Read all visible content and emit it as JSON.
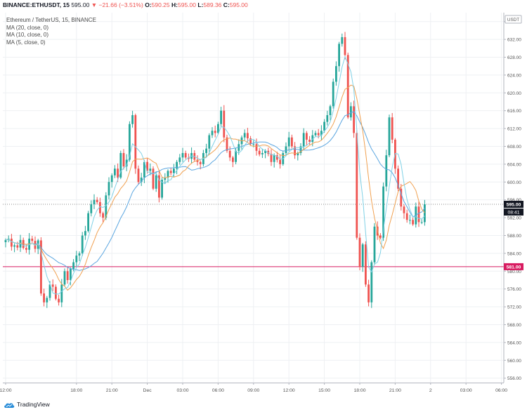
{
  "header": {
    "symbol": "BINANCE:ETHUSDT, 15",
    "last": "595.00",
    "change": "−21.66 (−3.51%)",
    "o_label": "O:",
    "o_val": "590.25",
    "h_label": "H:",
    "h_val": "595.00",
    "l_label": "L:",
    "l_val": "589.36",
    "c_label": "C:",
    "c_val": "595.00"
  },
  "legend": {
    "title": "Ethereum / TetherUS, 15, BINANCE",
    "ma20": "MA (20, close, 0)",
    "ma10": "MA (10, close, 0)",
    "ma5": "MA (5, close, 0)"
  },
  "brand": {
    "name": "TradingView"
  },
  "colors": {
    "up": "#26a69a",
    "down": "#ef5350",
    "ma20": "#5ba6e0",
    "ma10": "#f0a050",
    "ma5": "#7fd1e6",
    "grid": "#eef0f3",
    "axis": "#b2b5be",
    "hline": "#d81b60",
    "last": "#131722"
  },
  "chart_data": {
    "type": "candlestick",
    "currency_badge": "USDT",
    "ylim": [
      555,
      638
    ],
    "y_ticks": [
      "556.00",
      "560.00",
      "564.00",
      "568.00",
      "572.00",
      "576.00",
      "580.00",
      "584.00",
      "588.00",
      "592.00",
      "596.00",
      "600.00",
      "604.00",
      "608.00",
      "612.00",
      "616.00",
      "620.00",
      "624.00",
      "628.00",
      "632.00",
      "636.00"
    ],
    "x_ticks": [
      {
        "i": 0,
        "label": "12:00"
      },
      {
        "i": 24,
        "label": "18:00"
      },
      {
        "i": 36,
        "label": "21:00"
      },
      {
        "i": 48,
        "label": "Dec"
      },
      {
        "i": 60,
        "label": "03:00"
      },
      {
        "i": 72,
        "label": "06:00"
      },
      {
        "i": 84,
        "label": "09:00"
      },
      {
        "i": 96,
        "label": "12:00"
      },
      {
        "i": 108,
        "label": "15:00"
      },
      {
        "i": 120,
        "label": "18:00"
      },
      {
        "i": 132,
        "label": "21:00"
      },
      {
        "i": 144,
        "label": "2"
      },
      {
        "i": 156,
        "label": "03:00"
      },
      {
        "i": 168,
        "label": "06:00"
      }
    ],
    "price_line": {
      "value": 595.0,
      "label": "595.00",
      "countdown": "08:41"
    },
    "horizontal_line": {
      "value": 581.0,
      "label": "581.00"
    },
    "close": [
      587.0,
      587.3,
      585.5,
      585.8,
      585.3,
      587.0,
      585.2,
      584.8,
      587.3,
      586.8,
      585.0,
      586.9,
      575.0,
      573.0,
      574.0,
      577.0,
      576.5,
      573.8,
      573.0,
      577.0,
      580.0,
      578.0,
      580.5,
      582.0,
      583.5,
      584.0,
      588.0,
      589.0,
      593.0,
      595.0,
      596.0,
      595.5,
      593.0,
      592.0,
      597.0,
      600.0,
      601.5,
      603.0,
      601.0,
      606.5,
      603.5,
      605.0,
      613.0,
      615.0,
      603.0,
      600.0,
      601.0,
      604.5,
      602.5,
      603.0,
      598.5,
      601.5,
      596.5,
      600.5,
      601.0,
      602.5,
      602.0,
      603.0,
      604.5,
      605.5,
      606.5,
      605.5,
      605.2,
      606.5,
      605.0,
      604.5,
      604.0,
      606.5,
      607.5,
      610.5,
      611.5,
      611.0,
      613.0,
      616.0,
      610.0,
      607.0,
      605.5,
      604.5,
      607.0,
      608.5,
      610.0,
      611.0,
      609.8,
      608.5,
      608.5,
      607.0,
      606.2,
      606.5,
      607.0,
      606.3,
      604.5,
      606.0,
      605.0,
      604.0,
      606.5,
      608.0,
      610.0,
      608.0,
      606.0,
      606.5,
      608.0,
      611.0,
      609.5,
      609.0,
      610.5,
      611.0,
      610.5,
      611.5,
      613.5,
      615.0,
      617.0,
      622.5,
      626.0,
      631.0,
      632.5,
      628.5,
      614.5,
      617.0,
      611.0,
      587.5,
      581.0,
      586.0,
      577.0,
      573.0,
      582.0,
      590.0,
      588.0,
      587.5,
      599.0,
      606.0,
      614.5,
      609.5,
      603.0,
      598.5,
      594.5,
      593.0,
      591.5,
      591.5,
      590.5,
      594.5,
      591.0,
      591.0,
      595.0
    ]
  }
}
